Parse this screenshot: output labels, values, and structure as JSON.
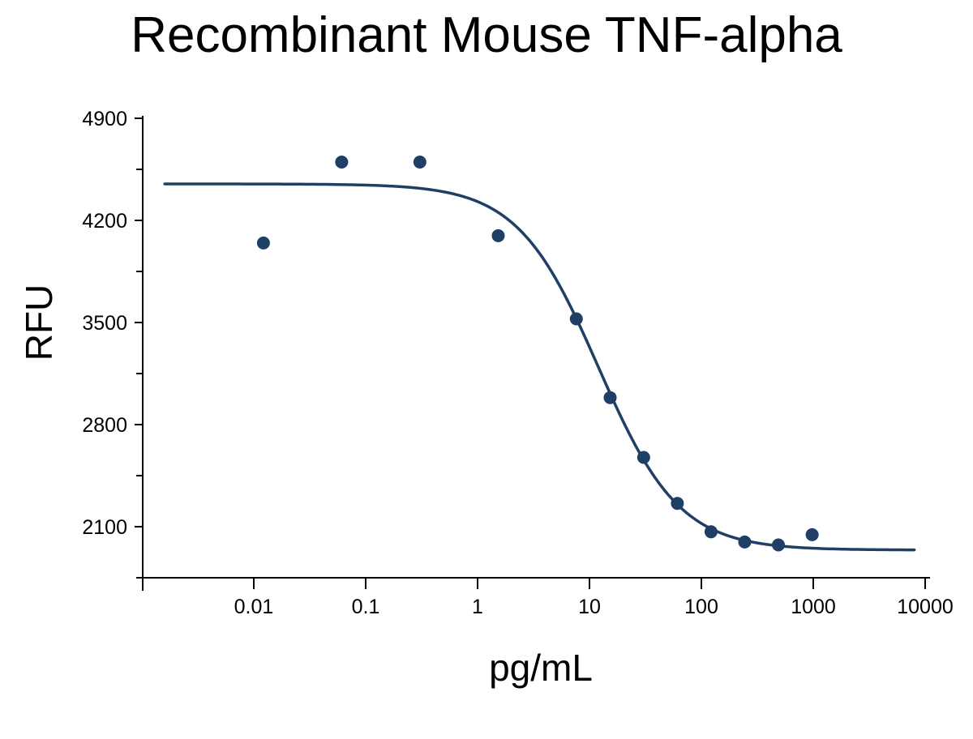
{
  "chart_data": {
    "type": "scatter",
    "title": "Recombinant Mouse TNF-alpha",
    "xlabel": "pg/mL",
    "ylabel": "RFU",
    "x_scale": "log",
    "xlim": [
      0.0015,
      10000
    ],
    "ylim": [
      1750,
      4900
    ],
    "x_ticks": [
      {
        "value": 0.01,
        "label": "0.01"
      },
      {
        "value": 0.1,
        "label": "0.1"
      },
      {
        "value": 1,
        "label": "1"
      },
      {
        "value": 10,
        "label": "10"
      },
      {
        "value": 100,
        "label": "100"
      },
      {
        "value": 1000,
        "label": "1000"
      },
      {
        "value": 10000,
        "label": "10000"
      }
    ],
    "y_ticks": [
      {
        "value": 2100,
        "label": "2100"
      },
      {
        "value": 2800,
        "label": "2800"
      },
      {
        "value": 3500,
        "label": "3500"
      },
      {
        "value": 4200,
        "label": "4200"
      },
      {
        "value": 4900,
        "label": "4900"
      }
    ],
    "y_minor_ticks": [
      1750,
      2450,
      3150,
      3850,
      4550
    ],
    "grid": false,
    "legend": "none",
    "color": "#1f3f66",
    "points": [
      {
        "x": 0.0122,
        "y": 4045
      },
      {
        "x": 0.061,
        "y": 4600
      },
      {
        "x": 0.305,
        "y": 4600
      },
      {
        "x": 1.53,
        "y": 4095
      },
      {
        "x": 7.63,
        "y": 3525
      },
      {
        "x": 15.3,
        "y": 2985
      },
      {
        "x": 30.5,
        "y": 2575
      },
      {
        "x": 61,
        "y": 2260
      },
      {
        "x": 122,
        "y": 2065
      },
      {
        "x": 244,
        "y": 1995
      },
      {
        "x": 488,
        "y": 1975
      },
      {
        "x": 977,
        "y": 2045
      }
    ],
    "fit_curve": {
      "type": "4PL",
      "top": 4450,
      "bottom": 1940,
      "ec50": 12,
      "hill": 1.2,
      "x_range": [
        0.0016,
        8000
      ]
    }
  }
}
